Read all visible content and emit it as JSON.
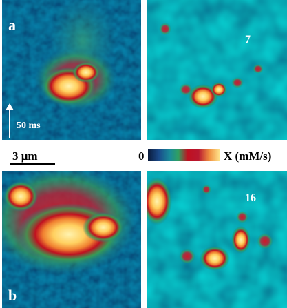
{
  "panels": [
    {
      "label": "a"
    },
    {
      "label": "7"
    },
    {
      "label": "b"
    },
    {
      "label": "16"
    }
  ],
  "time_bar": {
    "label": "50 ms"
  },
  "scale_bar": {
    "label": "3 μm"
  },
  "colorbar": {
    "min_label": "0",
    "max_label": "X (mM/s)"
  }
}
